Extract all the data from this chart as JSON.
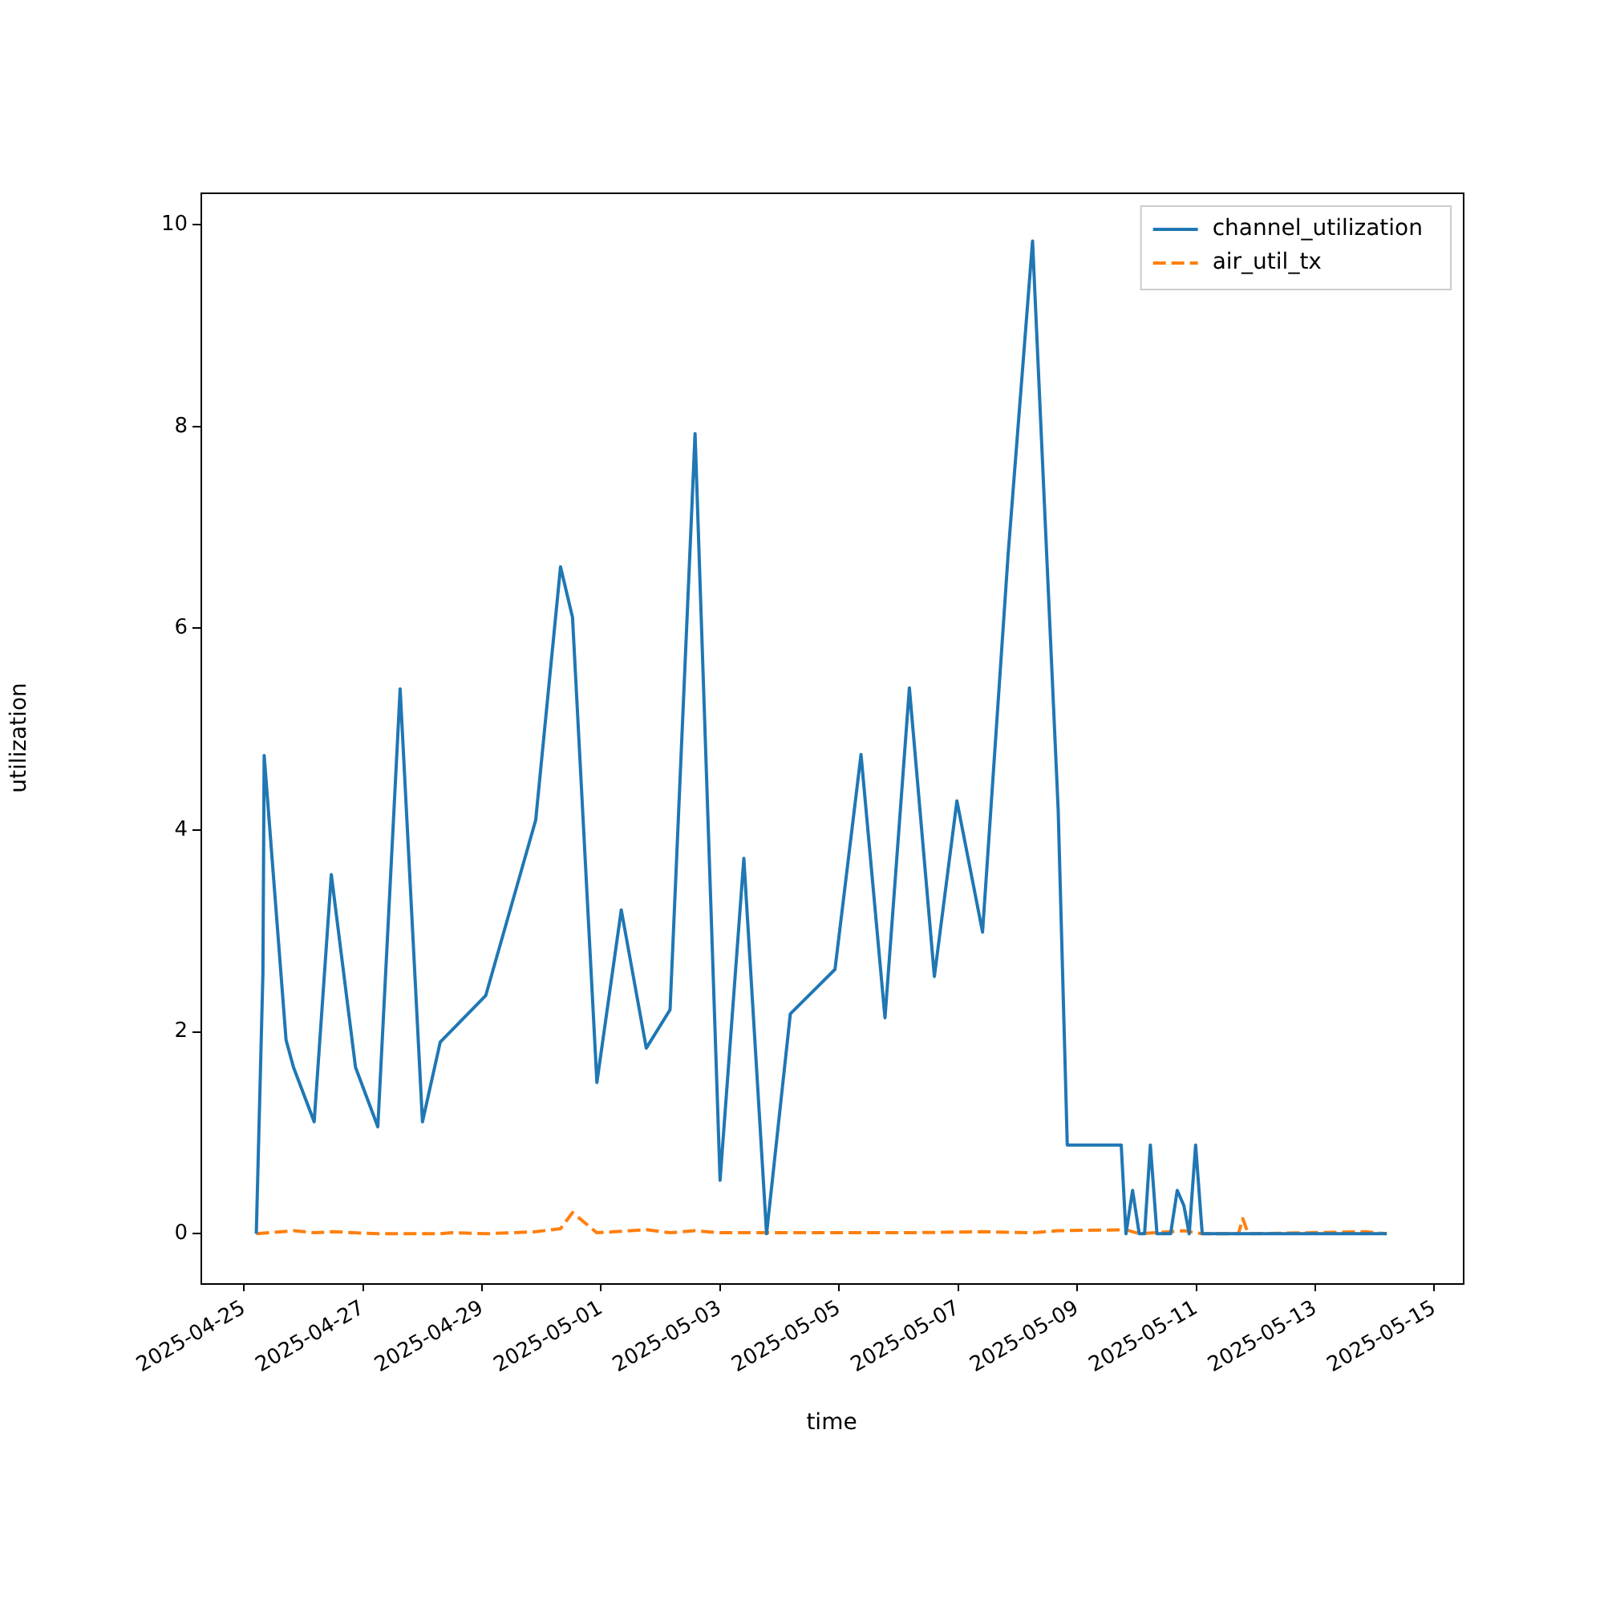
{
  "chart_data": {
    "type": "line",
    "xlabel": "time",
    "ylabel": "utilization",
    "xlim": [
      "2025-04-24T06:30",
      "2025-05-15T11:30"
    ],
    "xticks": [
      "2025-04-25",
      "2025-04-27",
      "2025-04-29",
      "2025-05-01",
      "2025-05-03",
      "2025-05-05",
      "2025-05-07",
      "2025-05-09",
      "2025-05-11",
      "2025-05-13",
      "2025-05-15"
    ],
    "ylim": [
      -0.49,
      10.32
    ],
    "yticks": [
      0,
      2,
      4,
      6,
      8,
      10
    ],
    "grid": false,
    "legend": "top right",
    "marker": "none",
    "series": [
      {
        "name": "channel_utilization",
        "color": "#1f77b4",
        "line_style": "solid",
        "x": [
          "2025-04-25T05:00",
          "2025-04-25T07:40",
          "2025-04-25T08:10",
          "2025-04-25T17:00",
          "2025-04-25T20:00",
          "2025-04-26T04:20",
          "2025-04-26T11:15",
          "2025-04-26T21:00",
          "2025-04-27T06:00",
          "2025-04-27T15:00",
          "2025-04-28T00:00",
          "2025-04-28T07:10",
          "2025-04-29T01:30",
          "2025-04-29T21:40",
          "2025-04-30T07:40",
          "2025-04-30T12:30",
          "2025-04-30T22:20",
          "2025-05-01T08:10",
          "2025-05-01T18:15",
          "2025-05-02T03:50",
          "2025-05-02T13:55",
          "2025-05-03T00:00",
          "2025-05-03T09:35",
          "2025-05-03T18:45",
          "2025-05-04T04:20",
          "2025-05-04T22:20",
          "2025-05-05T08:50",
          "2025-05-05T18:30",
          "2025-05-06T04:20",
          "2025-05-06T14:25",
          "2025-05-06T23:30",
          "2025-05-07T09:50",
          "2025-05-07T20:10",
          "2025-05-08T06:00",
          "2025-05-08T16:20",
          "2025-05-08T20:00",
          "2025-05-09T17:45",
          "2025-05-09T19:40",
          "2025-05-09T22:20",
          "2025-05-10T01:00",
          "2025-05-10T03:10",
          "2025-05-10T05:30",
          "2025-05-10T08:10",
          "2025-05-10T13:40",
          "2025-05-10T16:20",
          "2025-05-10T19:00",
          "2025-05-10T21:10",
          "2025-05-10T23:45",
          "2025-05-11T02:25",
          "2025-05-14T04:50"
        ],
        "values": [
          0,
          2.58,
          4.74,
          1.92,
          1.65,
          1.11,
          3.56,
          1.65,
          1.06,
          5.4,
          1.11,
          1.9,
          2.36,
          4.1,
          6.61,
          6.11,
          1.5,
          3.21,
          1.84,
          2.22,
          7.93,
          0.53,
          3.72,
          0,
          2.18,
          2.62,
          4.75,
          2.14,
          5.41,
          2.55,
          4.29,
          2.99,
          6.74,
          9.84,
          4.2,
          0.88,
          0.88,
          0,
          0.43,
          0,
          0,
          0.88,
          0,
          0,
          0.43,
          0.28,
          0,
          0.88,
          0,
          0
        ]
      },
      {
        "name": "air_util_tx",
        "color": "#ff7f0e",
        "line_style": "dashed",
        "x": [
          "2025-04-25T05:00",
          "2025-04-25T20:00",
          "2025-04-26T04:20",
          "2025-04-26T12:00",
          "2025-04-27T06:00",
          "2025-04-28T07:00",
          "2025-04-28T12:00",
          "2025-04-29T01:30",
          "2025-04-29T21:40",
          "2025-04-30T07:40",
          "2025-04-30T12:30",
          "2025-04-30T22:20",
          "2025-05-01T18:15",
          "2025-05-02T03:50",
          "2025-05-02T13:55",
          "2025-05-03T00:00",
          "2025-05-05T18:30",
          "2025-05-06T04:20",
          "2025-05-07T09:50",
          "2025-05-08T06:00",
          "2025-05-08T16:20",
          "2025-05-09T19:40",
          "2025-05-10T01:00",
          "2025-05-10T19:00",
          "2025-05-11T02:25",
          "2025-05-11T17:00",
          "2025-05-11T18:45",
          "2025-05-11T21:00",
          "2025-05-13T20:00",
          "2025-05-14T04:50"
        ],
        "values": [
          0,
          0.03,
          0.01,
          0.02,
          0,
          0,
          0.01,
          0,
          0.02,
          0.05,
          0.21,
          0.01,
          0.04,
          0.01,
          0.03,
          0.01,
          0.01,
          0.01,
          0.02,
          0.01,
          0.03,
          0.04,
          0,
          0.03,
          0,
          0,
          0.15,
          0,
          0.02,
          0
        ]
      }
    ]
  }
}
